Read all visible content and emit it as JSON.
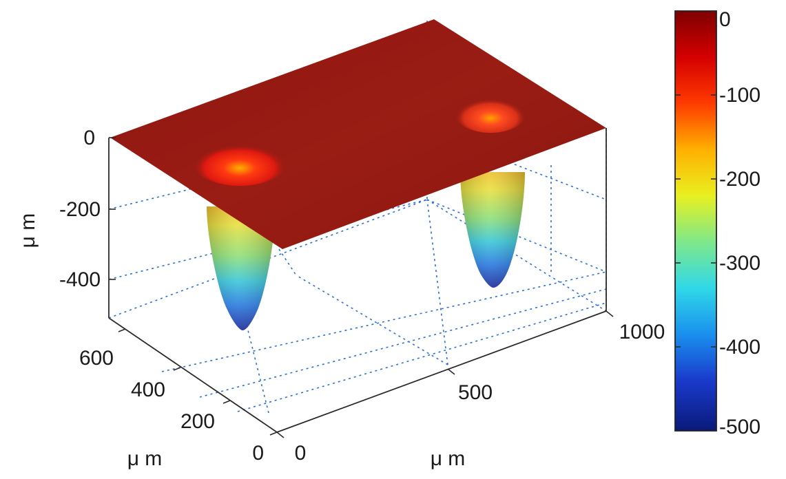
{
  "chart_data": {
    "type": "surface",
    "x_axis": {
      "label": "μ m",
      "ticks": [
        0,
        500,
        1000
      ],
      "range": [
        0,
        1000
      ]
    },
    "y_axis": {
      "label": "μ m",
      "ticks": [
        0,
        200,
        400,
        600
      ],
      "range": [
        0,
        600
      ]
    },
    "z_axis": {
      "label": "μ m",
      "ticks": [
        0,
        -200,
        -400
      ],
      "range": [
        -450,
        0
      ]
    },
    "colorbar": {
      "ticks": [
        0,
        -100,
        -200,
        -300,
        -400,
        -500
      ],
      "range": [
        -500,
        0
      ],
      "colormap": "jet"
    },
    "surface": {
      "baseline_z": 0,
      "wells": [
        {
          "x": 180,
          "y": 480,
          "depth": -450
        },
        {
          "x": 790,
          "y": 520,
          "depth": -400
        }
      ]
    },
    "grid": true
  },
  "colors": {
    "surface_top": "#961a12",
    "grid": "#2b6fd6",
    "axis": "#2a2a2a",
    "jet": [
      "#7f0000",
      "#ff0000",
      "#ff7f00",
      "#ffff00",
      "#7fff7f",
      "#00ffff",
      "#007fff",
      "#0000ff",
      "#00008f"
    ]
  }
}
